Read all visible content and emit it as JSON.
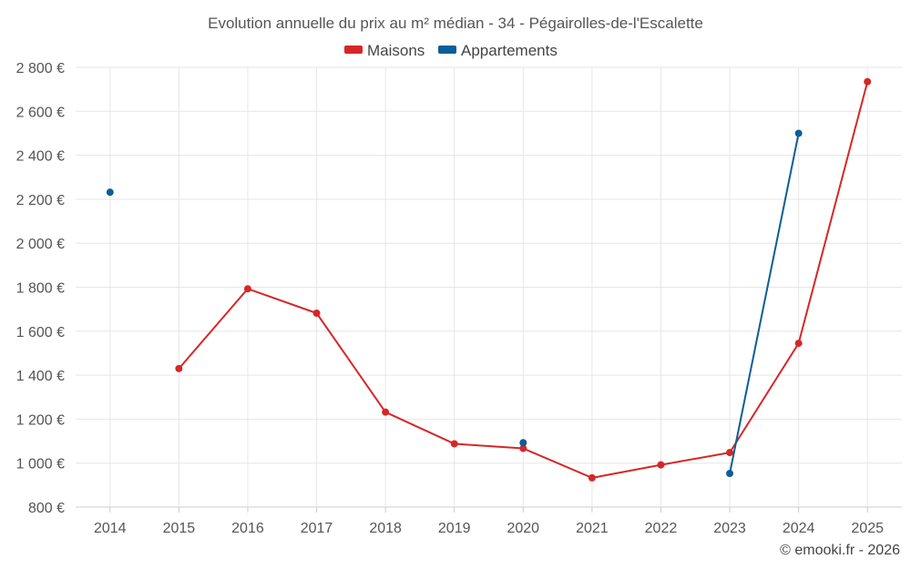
{
  "chart_data": {
    "type": "line",
    "title": "Evolution annuelle du prix au m² médian - 34 - Pégairolles-de-l'Escalette",
    "categories": [
      "2014",
      "2015",
      "2016",
      "2017",
      "2018",
      "2019",
      "2020",
      "2021",
      "2022",
      "2023",
      "2024",
      "2025"
    ],
    "y_tick_labels": [
      "800 €",
      "1 000 €",
      "1 200 €",
      "1 400 €",
      "1 600 €",
      "1 800 €",
      "2 000 €",
      "2 200 €",
      "2 400 €",
      "2 600 €",
      "2 800 €"
    ],
    "y_ticks": [
      800,
      1000,
      1200,
      1400,
      1600,
      1800,
      2000,
      2200,
      2400,
      2600,
      2800
    ],
    "ylim": [
      800,
      2800
    ],
    "series": [
      {
        "name": "Maisons",
        "color": "#d62728",
        "values": [
          null,
          1430,
          1793,
          1682,
          1232,
          1088,
          1067,
          933,
          992,
          1048,
          1545,
          2735
        ]
      },
      {
        "name": "Appartements",
        "color": "#0b5e96",
        "values": [
          2232,
          null,
          null,
          null,
          null,
          null,
          1093,
          null,
          null,
          953,
          2500,
          null
        ]
      }
    ],
    "legend_position": "top-center",
    "credit": "© emooki.fr - 2026"
  }
}
